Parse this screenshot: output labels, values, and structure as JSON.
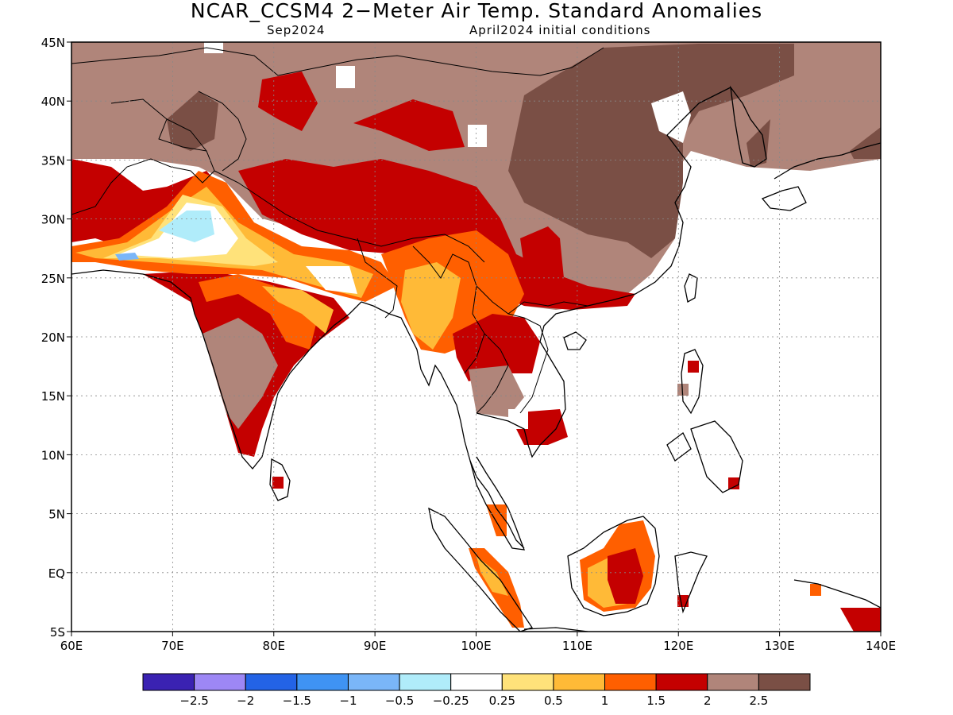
{
  "title": "NCAR_CCSM4 2−Meter Air Temp. Standard Anomalies",
  "subtitle_left": "Sep2024",
  "subtitle_right": "April2024 initial conditions",
  "map": {
    "lon_range": [
      60,
      140
    ],
    "lat_range": [
      -5,
      45
    ],
    "lon_ticks": [
      {
        "value": 60,
        "label": "60E"
      },
      {
        "value": 70,
        "label": "70E"
      },
      {
        "value": 80,
        "label": "80E"
      },
      {
        "value": 90,
        "label": "90E"
      },
      {
        "value": 100,
        "label": "100E"
      },
      {
        "value": 110,
        "label": "110E"
      },
      {
        "value": 120,
        "label": "120E"
      },
      {
        "value": 130,
        "label": "130E"
      },
      {
        "value": 140,
        "label": "140E"
      }
    ],
    "lat_ticks": [
      {
        "value": 45,
        "label": "45N"
      },
      {
        "value": 40,
        "label": "40N"
      },
      {
        "value": 35,
        "label": "35N"
      },
      {
        "value": 30,
        "label": "30N"
      },
      {
        "value": 25,
        "label": "25N"
      },
      {
        "value": 20,
        "label": "20N"
      },
      {
        "value": 15,
        "label": "15N"
      },
      {
        "value": 10,
        "label": "10N"
      },
      {
        "value": 5,
        "label": "5N"
      },
      {
        "value": 0,
        "label": "EQ"
      },
      {
        "value": -5,
        "label": "5S"
      }
    ],
    "gridlines": "dotted"
  },
  "colorbar": {
    "colors": [
      "#3a22b2",
      "#9d87f5",
      "#2363e6",
      "#3f93f3",
      "#7ab6f8",
      "#b0ecfa",
      "#ffffff",
      "#ffe27a",
      "#ffba37",
      "#ff5f00",
      "#c40000",
      "#b0857a",
      "#7a4f45"
    ],
    "labels": [
      "−2.5",
      "−2",
      "−1.5",
      "−1",
      "−0.5",
      "−0.25",
      "0.25",
      "0.5",
      "1",
      "1.5",
      "2",
      "2.5"
    ]
  }
}
